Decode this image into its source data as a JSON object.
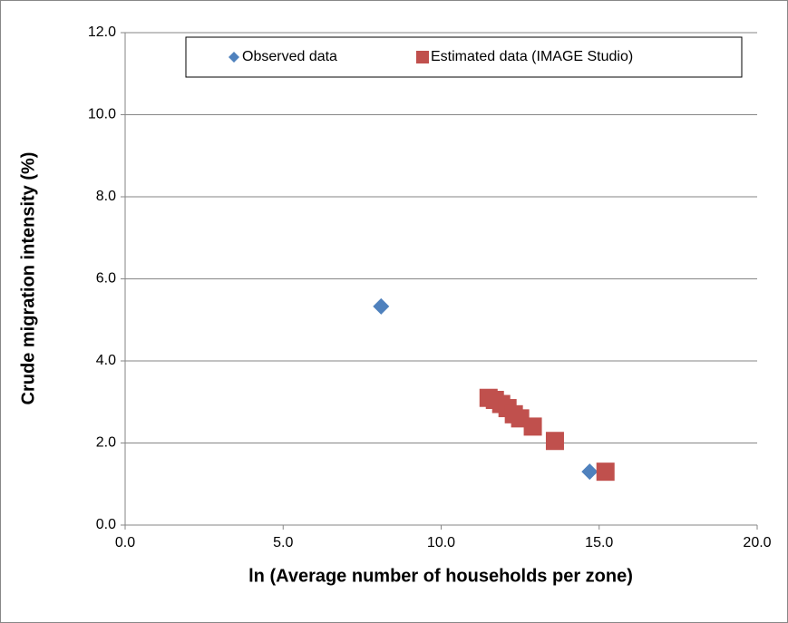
{
  "chart_data": {
    "type": "scatter",
    "xlabel": "ln (Average number of households per zone)",
    "ylabel": "Crude migration intensity (%)",
    "xlim": [
      0,
      20
    ],
    "xticks": [
      {
        "value": 0,
        "label": "0.0"
      },
      {
        "value": 5,
        "label": "5.0"
      },
      {
        "value": 10,
        "label": "10.0"
      },
      {
        "value": 15,
        "label": "15.0"
      },
      {
        "value": 20,
        "label": "20.0"
      }
    ],
    "ylim": [
      0,
      12
    ],
    "yticks": [
      {
        "value": 0,
        "label": "0.0"
      },
      {
        "value": 2,
        "label": "2.0"
      },
      {
        "value": 4,
        "label": "4.0"
      },
      {
        "value": 6,
        "label": "6.0"
      },
      {
        "value": 8,
        "label": "8.0"
      },
      {
        "value": 10,
        "label": "10.0"
      },
      {
        "value": 12,
        "label": "12.0"
      }
    ],
    "grid": true,
    "series": [
      {
        "name": "Observed data",
        "color": "#4f81bd",
        "marker": "diamond",
        "x": [
          8.1,
          14.7
        ],
        "values": [
          5.33,
          1.3
        ]
      },
      {
        "name": "Estimated data (IMAGE Studio)",
        "color": "#c0504d",
        "marker": "square",
        "x": [
          11.5,
          11.7,
          11.9,
          12.1,
          12.3,
          12.5,
          12.9,
          13.6,
          15.2
        ],
        "values": [
          3.1,
          3.05,
          2.95,
          2.85,
          2.7,
          2.6,
          2.4,
          2.05,
          1.3
        ]
      }
    ]
  }
}
